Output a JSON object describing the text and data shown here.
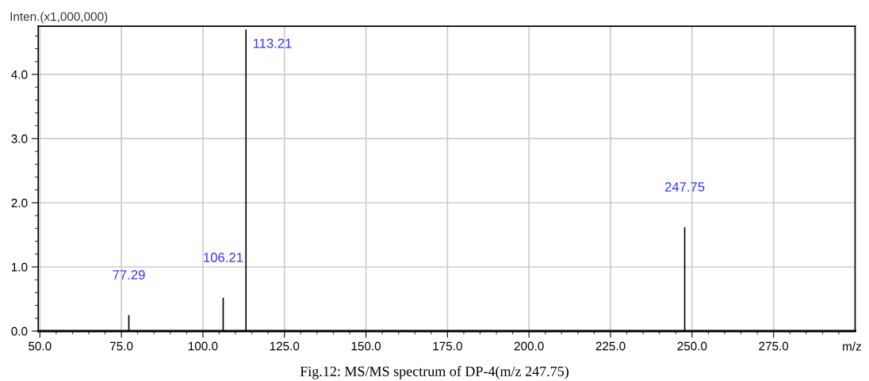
{
  "chart_data": {
    "type": "bar",
    "ylabel": "Inten.(x1,000,000)",
    "xlabel": "m/z",
    "x": [
      77.29,
      106.21,
      113.21,
      247.75
    ],
    "values": [
      0.25,
      0.52,
      4.7,
      1.62
    ],
    "color": "#000000",
    "annotations": [
      {
        "text": "77.29",
        "x": 77.29,
        "y": 0.25
      },
      {
        "text": "106.21",
        "x": 106.21,
        "y": 0.52
      },
      {
        "text": "113.21",
        "x": 113.21,
        "y": 4.7
      },
      {
        "text": "247.75",
        "x": 247.75,
        "y": 1.62
      },
      "Fig.12: MS/MS spectrum of DP-4(m/z 247.75)"
    ],
    "xlim": [
      49.5,
      300
    ],
    "ylim": [
      0,
      4.75
    ],
    "xticks": [
      {
        "value": 50,
        "label": "50.0"
      },
      {
        "value": 55,
        "label": null
      },
      {
        "value": 60,
        "label": null
      },
      {
        "value": 65,
        "label": null
      },
      {
        "value": 70,
        "label": null
      },
      {
        "value": 75,
        "label": "75.0"
      },
      {
        "value": 80,
        "label": null
      },
      {
        "value": 85,
        "label": null
      },
      {
        "value": 90,
        "label": null
      },
      {
        "value": 95,
        "label": null
      },
      {
        "value": 100,
        "label": "100.0"
      },
      {
        "value": 105,
        "label": null
      },
      {
        "value": 110,
        "label": null
      },
      {
        "value": 115,
        "label": null
      },
      {
        "value": 120,
        "label": null
      },
      {
        "value": 125,
        "label": "125.0"
      },
      {
        "value": 130,
        "label": null
      },
      {
        "value": 135,
        "label": null
      },
      {
        "value": 140,
        "label": null
      },
      {
        "value": 145,
        "label": null
      },
      {
        "value": 150,
        "label": "150.0"
      },
      {
        "value": 155,
        "label": null
      },
      {
        "value": 160,
        "label": null
      },
      {
        "value": 165,
        "label": null
      },
      {
        "value": 170,
        "label": null
      },
      {
        "value": 175,
        "label": "175.0"
      },
      {
        "value": 180,
        "label": null
      },
      {
        "value": 185,
        "label": null
      },
      {
        "value": 190,
        "label": null
      },
      {
        "value": 195,
        "label": null
      },
      {
        "value": 200,
        "label": "200.0"
      },
      {
        "value": 205,
        "label": null
      },
      {
        "value": 210,
        "label": null
      },
      {
        "value": 215,
        "label": null
      },
      {
        "value": 220,
        "label": null
      },
      {
        "value": 225,
        "label": "225.0"
      },
      {
        "value": 230,
        "label": null
      },
      {
        "value": 235,
        "label": null
      },
      {
        "value": 240,
        "label": null
      },
      {
        "value": 245,
        "label": null
      },
      {
        "value": 250,
        "label": "250.0"
      },
      {
        "value": 255,
        "label": null
      },
      {
        "value": 260,
        "label": null
      },
      {
        "value": 265,
        "label": null
      },
      {
        "value": 270,
        "label": null
      },
      {
        "value": 275,
        "label": "275.0"
      },
      {
        "value": 280,
        "label": null
      },
      {
        "value": 285,
        "label": null
      },
      {
        "value": 290,
        "label": null
      },
      {
        "value": 295,
        "label": null
      }
    ],
    "yticks": [
      {
        "value": 0,
        "label": "0.0"
      },
      {
        "value": 0.2,
        "label": null
      },
      {
        "value": 0.4,
        "label": null
      },
      {
        "value": 0.6,
        "label": null
      },
      {
        "value": 0.8,
        "label": null
      },
      {
        "value": 1,
        "label": "1.0"
      },
      {
        "value": 1.2,
        "label": null
      },
      {
        "value": 1.4,
        "label": null
      },
      {
        "value": 1.6,
        "label": null
      },
      {
        "value": 1.8,
        "label": null
      },
      {
        "value": 2,
        "label": "2.0"
      },
      {
        "value": 2.2,
        "label": null
      },
      {
        "value": 2.4,
        "label": null
      },
      {
        "value": 2.6,
        "label": null
      },
      {
        "value": 2.8,
        "label": null
      },
      {
        "value": 3,
        "label": "3.0"
      },
      {
        "value": 3.2,
        "label": null
      },
      {
        "value": 3.4,
        "label": null
      },
      {
        "value": 3.6,
        "label": null
      },
      {
        "value": 3.8,
        "label": null
      },
      {
        "value": 4,
        "label": "4.0"
      },
      {
        "value": 4.2,
        "label": null
      },
      {
        "value": 4.4,
        "label": null
      },
      {
        "value": 4.6,
        "label": null
      }
    ],
    "grid": true
  }
}
